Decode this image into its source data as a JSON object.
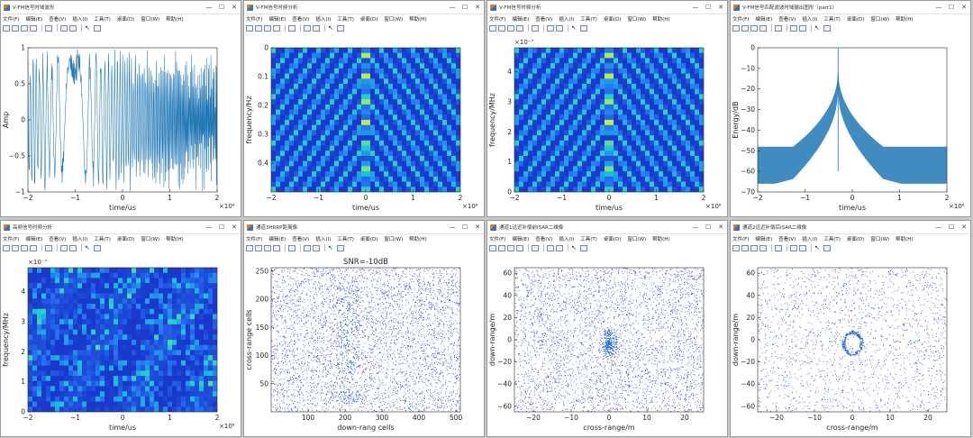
{
  "menu": [
    "文件(F)",
    "编辑(E)",
    "查看(V)",
    "插入(I)",
    "工具(T)",
    "桌面(D)",
    "窗口(W)",
    "帮助(H)"
  ],
  "window_controls": [
    "—",
    "☐",
    "✕"
  ],
  "windows": [
    {
      "title": "V-FM信号时域波形",
      "ptype": "line",
      "xlabel": "time/us",
      "ylabel": "Amp",
      "xlim": [
        -2000000,
        2000000
      ],
      "ylim": [
        -1,
        1
      ],
      "xticks": [
        -2,
        -1,
        0,
        1,
        2
      ],
      "yticks": [
        -1,
        -0.5,
        0,
        0.5,
        1
      ],
      "xexp": "×10⁶",
      "yexp": "",
      "title_text": "",
      "colors": {
        "line": "#1f77b4"
      }
    },
    {
      "title": "V-FM信号时频分析",
      "ptype": "vpattern",
      "xlabel": "time/us",
      "ylabel": "frequency/Hz",
      "xlim": [
        -2000000,
        2000000
      ],
      "ylim": [
        0,
        0.5
      ],
      "xticks": [
        -2,
        -1,
        0,
        1,
        2
      ],
      "yticks": [
        0,
        0.1,
        0.2,
        0.3,
        0.4
      ],
      "yreverse": true,
      "xexp": "×10⁶",
      "yexp": "",
      "title_text": ""
    },
    {
      "title": "V-FM信号时频分析",
      "ptype": "vpattern",
      "xlabel": "time/us",
      "ylabel": "frequency/MHz",
      "xlim": [
        -2000000,
        2000000
      ],
      "ylim": [
        0,
        4.8e-07
      ],
      "xticks": [
        -2,
        -1,
        0,
        1,
        2
      ],
      "yticks": [
        0,
        1,
        2,
        3,
        4
      ],
      "yreverse": false,
      "xexp": "×10⁶",
      "yexp": "×10⁻⁷",
      "title_text": ""
    },
    {
      "title": "V-FM信号匹配滤波时域输出图形（part1）",
      "ptype": "spike",
      "xlabel": "time/us",
      "ylabel": "Energy/dB",
      "xlim": [
        -2000000,
        2000000
      ],
      "ylim": [
        -70,
        0
      ],
      "xticks": [
        -2,
        -1,
        0,
        1,
        2
      ],
      "yticks": [
        -70,
        -60,
        -50,
        -40,
        -30,
        -20,
        -10,
        0
      ],
      "xexp": "×10⁶",
      "yexp": "",
      "title_text": "",
      "colors": {
        "line": "#1f77b4"
      }
    },
    {
      "title": "高频信号时频分析",
      "ptype": "noisemap",
      "xlabel": "time/us",
      "ylabel": "frequency/MHz",
      "xlim": [
        -2000000,
        2000000
      ],
      "ylim": [
        0,
        4.8e-07
      ],
      "xticks": [
        -2,
        -1,
        0,
        1,
        2
      ],
      "yticks": [
        0,
        1,
        2,
        3,
        4
      ],
      "xexp": "×10⁶",
      "yexp": "×10⁻⁷",
      "title_text": ""
    },
    {
      "title": "通道3HRRP距离像",
      "ptype": "scatter",
      "xlabel": "down-rang cells",
      "ylabel": "cross-range cells",
      "xlim": [
        0,
        512
      ],
      "ylim": [
        0,
        256
      ],
      "xticks": [
        100,
        200,
        300,
        400,
        500
      ],
      "yticks": [
        50,
        100,
        150,
        200,
        250
      ],
      "xexp": "",
      "yexp": "",
      "title_text": "SNR=-10dB",
      "density": 1.0,
      "target": "cross"
    },
    {
      "title": "通道1远近补偿前ISAR二维像",
      "ptype": "scatter",
      "xlabel": "cross-range/m",
      "ylabel": "down-range/m",
      "xlim": [
        -25,
        25
      ],
      "ylim": [
        -65,
        65
      ],
      "xticks": [
        -20,
        -10,
        0,
        10,
        20
      ],
      "yticks": [
        -60,
        -40,
        -20,
        0,
        20,
        40,
        60
      ],
      "xexp": "",
      "yexp": "",
      "title_text": "",
      "density": 0.9,
      "target": "blob"
    },
    {
      "title": "通道2远近补偿后ISAR二维像",
      "ptype": "scatter",
      "xlabel": "cross-range/m",
      "ylabel": "down-range/m",
      "xlim": [
        -25,
        25
      ],
      "ylim": [
        -65,
        65
      ],
      "xticks": [
        -20,
        -10,
        0,
        10,
        20
      ],
      "yticks": [
        -60,
        -40,
        -20,
        0,
        20,
        40,
        60
      ],
      "xexp": "",
      "yexp": "",
      "title_text": "",
      "density": 0.45,
      "target": "ring"
    }
  ]
}
